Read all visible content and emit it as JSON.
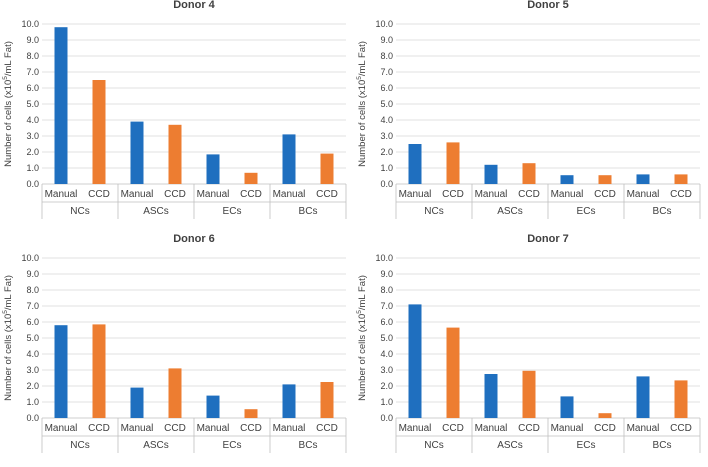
{
  "chart_data": [
    {
      "type": "bar",
      "title": "Donor 4",
      "ylabel": {
        "prefix": "Number of cells (x10",
        "sup": "5",
        "suffix": "/mL Fat)"
      },
      "ylim": [
        0,
        10
      ],
      "yticks": [
        "0.0",
        "1.0",
        "2.0",
        "3.0",
        "4.0",
        "5.0",
        "6.0",
        "7.0",
        "8.0",
        "9.0",
        "10.0"
      ],
      "groups": [
        "NCs",
        "ASCs",
        "ECs",
        "BCs"
      ],
      "methods": [
        "Manual",
        "CCD"
      ],
      "series": [
        {
          "name": "Manual",
          "color": "#1f6fbf",
          "values": [
            9.8,
            3.9,
            1.85,
            3.1
          ]
        },
        {
          "name": "CCD",
          "color": "#ed7d31",
          "values": [
            6.5,
            3.7,
            0.7,
            1.9
          ]
        }
      ]
    },
    {
      "type": "bar",
      "title": "Donor 5",
      "ylabel": {
        "prefix": "Number of cells (x10",
        "sup": "5",
        "suffix": "/mL Fat)"
      },
      "ylim": [
        0,
        10
      ],
      "yticks": [
        "0.0",
        "1.0",
        "2.0",
        "3.0",
        "4.0",
        "5.0",
        "6.0",
        "7.0",
        "8.0",
        "9.0",
        "10.0"
      ],
      "groups": [
        "NCs",
        "ASCs",
        "ECs",
        "BCs"
      ],
      "methods": [
        "Manual",
        "CCD"
      ],
      "series": [
        {
          "name": "Manual",
          "color": "#1f6fbf",
          "values": [
            2.5,
            1.2,
            0.55,
            0.6
          ]
        },
        {
          "name": "CCD",
          "color": "#ed7d31",
          "values": [
            2.6,
            1.3,
            0.55,
            0.6
          ]
        }
      ]
    },
    {
      "type": "bar",
      "title": "Donor 6",
      "ylabel": {
        "prefix": "Number of cells (x10",
        "sup": "5",
        "suffix": "/mL Fat)"
      },
      "ylim": [
        0,
        10
      ],
      "yticks": [
        "0.0",
        "1.0",
        "2.0",
        "3.0",
        "4.0",
        "5.0",
        "6.0",
        "7.0",
        "8.0",
        "9.0",
        "10.0"
      ],
      "groups": [
        "NCs",
        "ASCs",
        "ECs",
        "BCs"
      ],
      "methods": [
        "Manual",
        "CCD"
      ],
      "series": [
        {
          "name": "Manual",
          "color": "#1f6fbf",
          "values": [
            5.8,
            1.9,
            1.4,
            2.1
          ]
        },
        {
          "name": "CCD",
          "color": "#ed7d31",
          "values": [
            5.85,
            3.1,
            0.55,
            2.25
          ]
        }
      ]
    },
    {
      "type": "bar",
      "title": "Donor 7",
      "ylabel": {
        "prefix": "Number of cells (x10",
        "sup": "5",
        "suffix": "/mL Fat)"
      },
      "ylim": [
        0,
        10
      ],
      "yticks": [
        "0.0",
        "1.0",
        "2.0",
        "3.0",
        "4.0",
        "5.0",
        "6.0",
        "7.0",
        "8.0",
        "9.0",
        "10.0"
      ],
      "groups": [
        "NCs",
        "ASCs",
        "ECs",
        "BCs"
      ],
      "methods": [
        "Manual",
        "CCD"
      ],
      "series": [
        {
          "name": "Manual",
          "color": "#1f6fbf",
          "values": [
            7.1,
            2.75,
            1.35,
            2.6
          ]
        },
        {
          "name": "CCD",
          "color": "#ed7d31",
          "values": [
            5.65,
            2.95,
            0.3,
            2.35
          ]
        }
      ]
    }
  ]
}
